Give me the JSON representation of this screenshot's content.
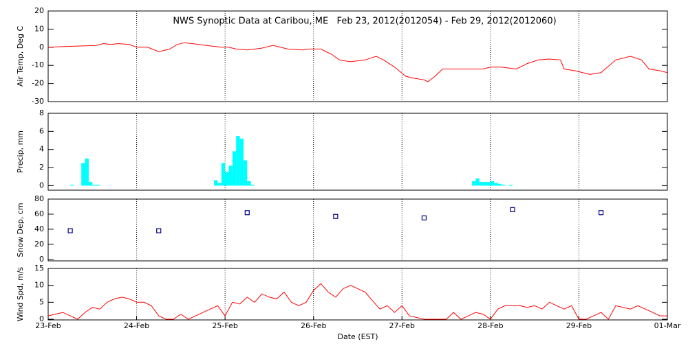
{
  "chart_data": [
    {
      "type": "line",
      "title": "NWS Synoptic Data at Caribou, ME   Feb 23, 2012(2012054) - Feb 29, 2012(2012060)",
      "ylabel": "Air Temp, Deg C",
      "color": "#ff0000",
      "xgrid": true,
      "x": [
        0,
        6,
        13,
        15,
        17,
        19,
        22,
        24,
        27,
        30,
        33,
        35,
        37,
        39,
        43,
        47,
        49,
        51,
        54,
        58,
        61,
        65,
        69,
        71,
        74,
        77,
        79,
        82,
        86,
        89,
        91,
        94,
        97,
        99,
        102,
        103,
        105,
        107,
        110,
        118,
        120,
        123,
        127,
        130,
        133,
        136,
        139,
        140,
        143,
        147,
        150,
        154,
        158,
        161,
        163,
        166,
        168
      ],
      "values": [
        0,
        0.5,
        1,
        2,
        1.5,
        2,
        1.5,
        0,
        0,
        -2.5,
        -1,
        1.5,
        2.5,
        2,
        1,
        0,
        0,
        -1,
        -1.5,
        -0.5,
        1,
        -1,
        -1.5,
        -1,
        -1,
        -4,
        -7,
        -8,
        -7,
        -5,
        -7,
        -11,
        -16,
        -17,
        -18,
        -19,
        -16,
        -12,
        -12,
        -12,
        -11,
        -11,
        -12,
        -9,
        -7,
        -6.5,
        -7,
        -12,
        -13,
        -15,
        -14,
        -7,
        -5,
        -7,
        -12,
        -13,
        -14
      ],
      "xlim": [
        0,
        168
      ],
      "ylim": [
        -30,
        20
      ],
      "yticks": [
        -30,
        -20,
        -10,
        0,
        10,
        20
      ]
    },
    {
      "type": "bar",
      "ylabel": "Precip, mm",
      "color": "#00ffff",
      "xgrid": true,
      "x": [
        6,
        9,
        10,
        11,
        12,
        13,
        45,
        46,
        47,
        48,
        49,
        50,
        51,
        52,
        53,
        54,
        55,
        115,
        116,
        117,
        118,
        119,
        120,
        121,
        122,
        123,
        125
      ],
      "values": [
        0.1,
        2.5,
        3,
        0.4,
        0.1,
        0.1,
        0.6,
        0.3,
        2.5,
        1.5,
        2.2,
        3.8,
        5.5,
        5.2,
        2.8,
        0.5,
        0.1,
        0.5,
        0.8,
        0.4,
        0.4,
        0.4,
        0.5,
        0.3,
        0.2,
        0.1,
        0.1
      ],
      "xlim": [
        0,
        168
      ],
      "ylim": [
        -0.5,
        8
      ],
      "yticks": [
        0,
        2,
        4,
        6,
        8
      ]
    },
    {
      "type": "scatter",
      "ylabel": "Snow Dep, cm",
      "color": "#000080",
      "xgrid": true,
      "x": [
        6,
        30,
        54,
        78,
        102,
        126,
        150
      ],
      "values": [
        38,
        38,
        62,
        57,
        55,
        66,
        62
      ],
      "xlim": [
        0,
        168
      ],
      "ylim": [
        -2,
        80
      ],
      "yticks": [
        0,
        20,
        40,
        60,
        80
      ]
    },
    {
      "type": "line",
      "ylabel": "Wind Spd, m/s",
      "xlabel": "Date (EST)",
      "color": "#ff0000",
      "xgrid": true,
      "x": [
        0,
        2,
        4,
        6,
        8,
        10,
        12,
        14,
        16,
        18,
        20,
        22,
        24,
        26,
        28,
        30,
        32,
        34,
        36,
        38,
        40,
        42,
        44,
        46,
        48,
        50,
        52,
        54,
        56,
        58,
        60,
        62,
        64,
        66,
        68,
        70,
        72,
        74,
        76,
        78,
        80,
        82,
        84,
        86,
        88,
        90,
        92,
        94,
        96,
        98,
        100,
        102,
        104,
        106,
        108,
        110,
        112,
        114,
        116,
        118,
        120,
        122,
        124,
        126,
        128,
        130,
        132,
        134,
        136,
        138,
        140,
        142,
        144,
        146,
        148,
        150,
        152,
        154,
        156,
        158,
        160,
        162,
        164,
        166,
        168
      ],
      "values": [
        1,
        1.5,
        2,
        1,
        0,
        2,
        3.5,
        3,
        5,
        6,
        6.5,
        6,
        5,
        5,
        4,
        1,
        0,
        0,
        1.5,
        0,
        1,
        2,
        3,
        4,
        1,
        5,
        4.5,
        6.5,
        5,
        7.5,
        6.5,
        6,
        8,
        5,
        4,
        5,
        8.5,
        10.5,
        8,
        6.5,
        9,
        10,
        9,
        8,
        5.5,
        3,
        4,
        2,
        4,
        1,
        0.5,
        0,
        0,
        0,
        0,
        2,
        0,
        1,
        2,
        1.5,
        0,
        3,
        4,
        4,
        4,
        3.5,
        4,
        3,
        5,
        4,
        3,
        4,
        0,
        0,
        1,
        2,
        0,
        4,
        3.5,
        3,
        4,
        3,
        2,
        1,
        1
      ],
      "xlim": [
        0,
        168
      ],
      "ylim": [
        -0.2,
        15
      ],
      "yticks": [
        0,
        5,
        10,
        15
      ],
      "xticks": [
        {
          "value": 0,
          "label": "23-Feb"
        },
        {
          "value": 24,
          "label": "24-Feb"
        },
        {
          "value": 48,
          "label": "25-Feb"
        },
        {
          "value": 72,
          "label": "26-Feb"
        },
        {
          "value": 96,
          "label": "27-Feb"
        },
        {
          "value": 120,
          "label": "28-Feb"
        },
        {
          "value": 144,
          "label": "29-Feb"
        },
        {
          "value": 168,
          "label": "01-Mar"
        }
      ]
    }
  ]
}
